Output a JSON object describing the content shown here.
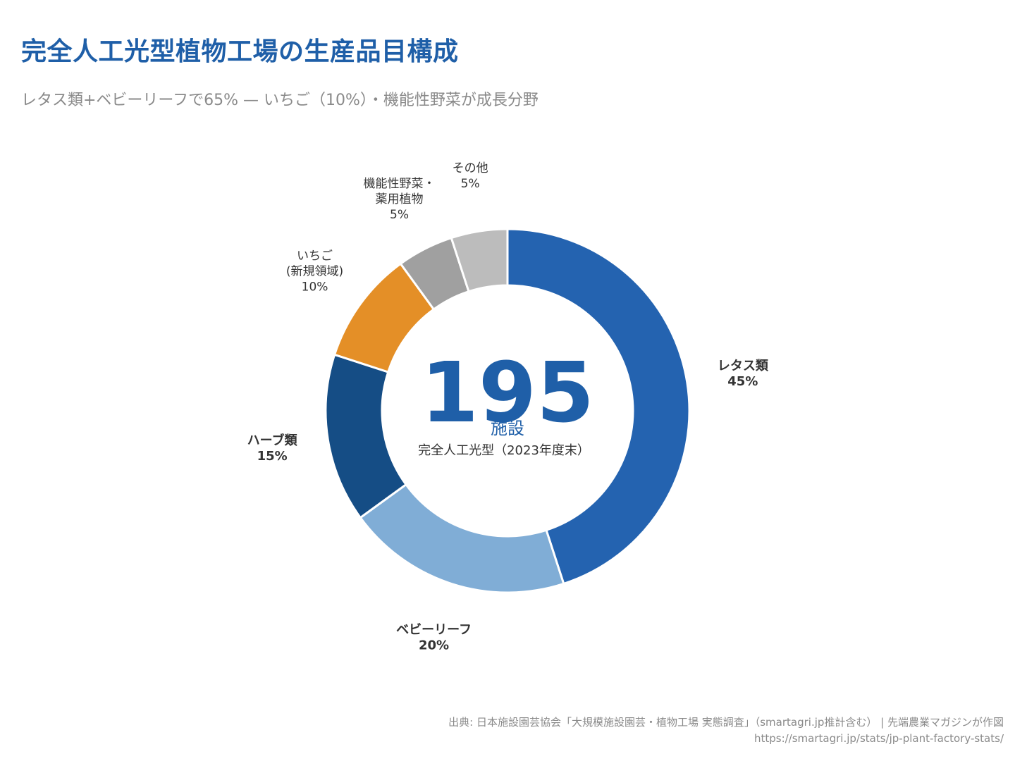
{
  "title": "完全人工光型植物工場の生産品目構成",
  "subtitle": "レタス類+ベビーリーフで65% — いちご（10%）・機能性野菜が成長分野",
  "center": {
    "value": "195",
    "unit": "施設",
    "caption": "完全人工光型（2023年度末）"
  },
  "chart_data": {
    "type": "pie",
    "donut": true,
    "start": "top, clockwise",
    "series": [
      {
        "name": "レタス類",
        "label_lines": [
          "レタス類"
        ],
        "value": 45,
        "pct": "45%",
        "color": "#2463b0",
        "bold": true
      },
      {
        "name": "ベビーリーフ",
        "label_lines": [
          "ベビーリーフ"
        ],
        "value": 20,
        "pct": "20%",
        "color": "#80add6",
        "bold": true
      },
      {
        "name": "ハーブ類",
        "label_lines": [
          "ハーブ類"
        ],
        "value": 15,
        "pct": "15%",
        "color": "#154d85",
        "bold": true
      },
      {
        "name": "いちご(新規領域)",
        "label_lines": [
          "いちご",
          "(新規領域)"
        ],
        "value": 10,
        "pct": "10%",
        "color": "#e48f27",
        "bold": false
      },
      {
        "name": "機能性野菜・薬用植物",
        "label_lines": [
          "機能性野菜・",
          "薬用植物"
        ],
        "value": 5,
        "pct": "5%",
        "color": "#a0a0a0",
        "bold": false
      },
      {
        "name": "その他",
        "label_lines": [
          "その他"
        ],
        "value": 5,
        "pct": "5%",
        "color": "#bcbcbc",
        "bold": false
      }
    ]
  },
  "footer": {
    "source": "出典: 日本施設園芸協会「大規模施設園芸・植物工場 実態調査」（smartagri.jp推計含む） | 先端農業マガジンが作図",
    "url": "https://smartagri.jp/stats/jp-plant-factory-stats/"
  }
}
